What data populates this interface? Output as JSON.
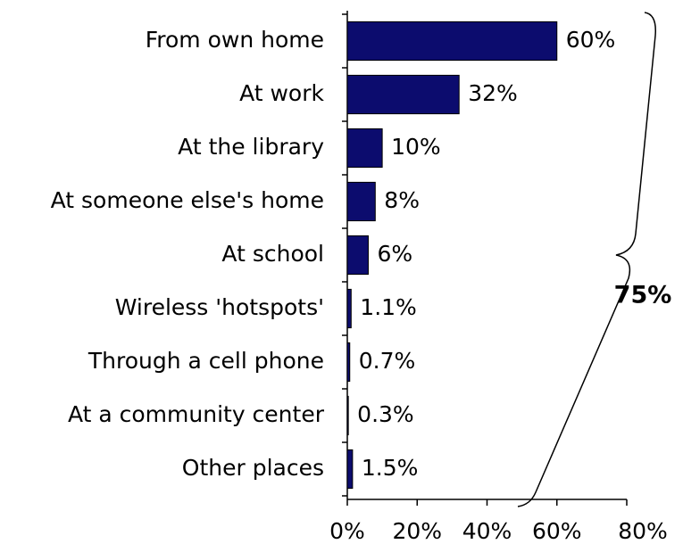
{
  "chart_data": {
    "type": "bar",
    "orientation": "horizontal",
    "categories": [
      "From own home",
      "At work",
      "At the library",
      "At someone else's home",
      "At school",
      "Wireless 'hotspots'",
      "Through a cell phone",
      "At a community center",
      "Other places"
    ],
    "values": [
      60,
      32,
      10,
      8,
      6,
      1.1,
      0.7,
      0.3,
      1.5
    ],
    "value_labels": [
      "60%",
      "32%",
      "10%",
      "8%",
      "6%",
      "1.1%",
      "0.7%",
      "0.3%",
      "1.5%"
    ],
    "color": "#0c0c6e",
    "xlim": [
      0,
      80
    ],
    "xticks": [
      {
        "value": 0,
        "label": "0%"
      },
      {
        "value": 20,
        "label": "20%"
      },
      {
        "value": 40,
        "label": "40%"
      },
      {
        "value": 60,
        "label": "60%"
      },
      {
        "value": 80,
        "label": "80%"
      }
    ],
    "grid": false,
    "annotations": [
      {
        "text": "75%"
      }
    ]
  }
}
